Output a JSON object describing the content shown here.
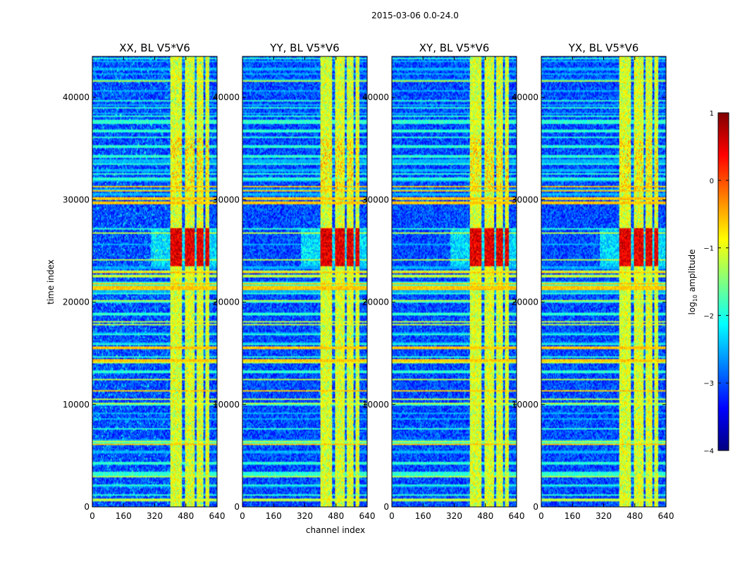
{
  "chart_data": {
    "type": "heatmap",
    "suptitle": "2015-03-06 0.0-24.0",
    "xlabel": "channel index",
    "ylabel": "time index",
    "xlim": [
      0,
      640
    ],
    "ylim": [
      0,
      44000
    ],
    "xticks": [
      0,
      160,
      320,
      480,
      640
    ],
    "yticks": [
      0,
      10000,
      20000,
      30000,
      40000
    ],
    "panels": [
      {
        "title": "XX, BL V5*V6",
        "pol": "XX"
      },
      {
        "title": "YY, BL V5*V6",
        "pol": "YY"
      },
      {
        "title": "XY, BL V5*V6",
        "pol": "XY"
      },
      {
        "title": "YX, BL V5*V6",
        "pol": "YX"
      }
    ],
    "colorbar": {
      "label": "log10 amplitude",
      "label_base": "log",
      "label_sub": "10",
      "label_rest": " amplitude",
      "range": [
        -4,
        1
      ],
      "ticks": [
        1,
        0,
        -1,
        -2,
        -3,
        -4
      ],
      "tick_labels": [
        "1",
        "0",
        "−1",
        "−2",
        "−3",
        "−4"
      ],
      "colormap": "jet",
      "jet_stops": [
        "#000080",
        "#0000ff",
        "#0080ff",
        "#00ffff",
        "#80ff80",
        "#ffff00",
        "#ff8000",
        "#ff0000",
        "#800000"
      ]
    },
    "features": {
      "band_channels": [
        [
          400,
          460
        ],
        [
          475,
          525
        ],
        [
          535,
          570
        ],
        [
          580,
          600
        ]
      ],
      "band_level": -1.0,
      "strong_rfi_time": [
        23500,
        27200
      ],
      "strong_rfi_level": 0.5,
      "background_level": -3.0
    }
  }
}
